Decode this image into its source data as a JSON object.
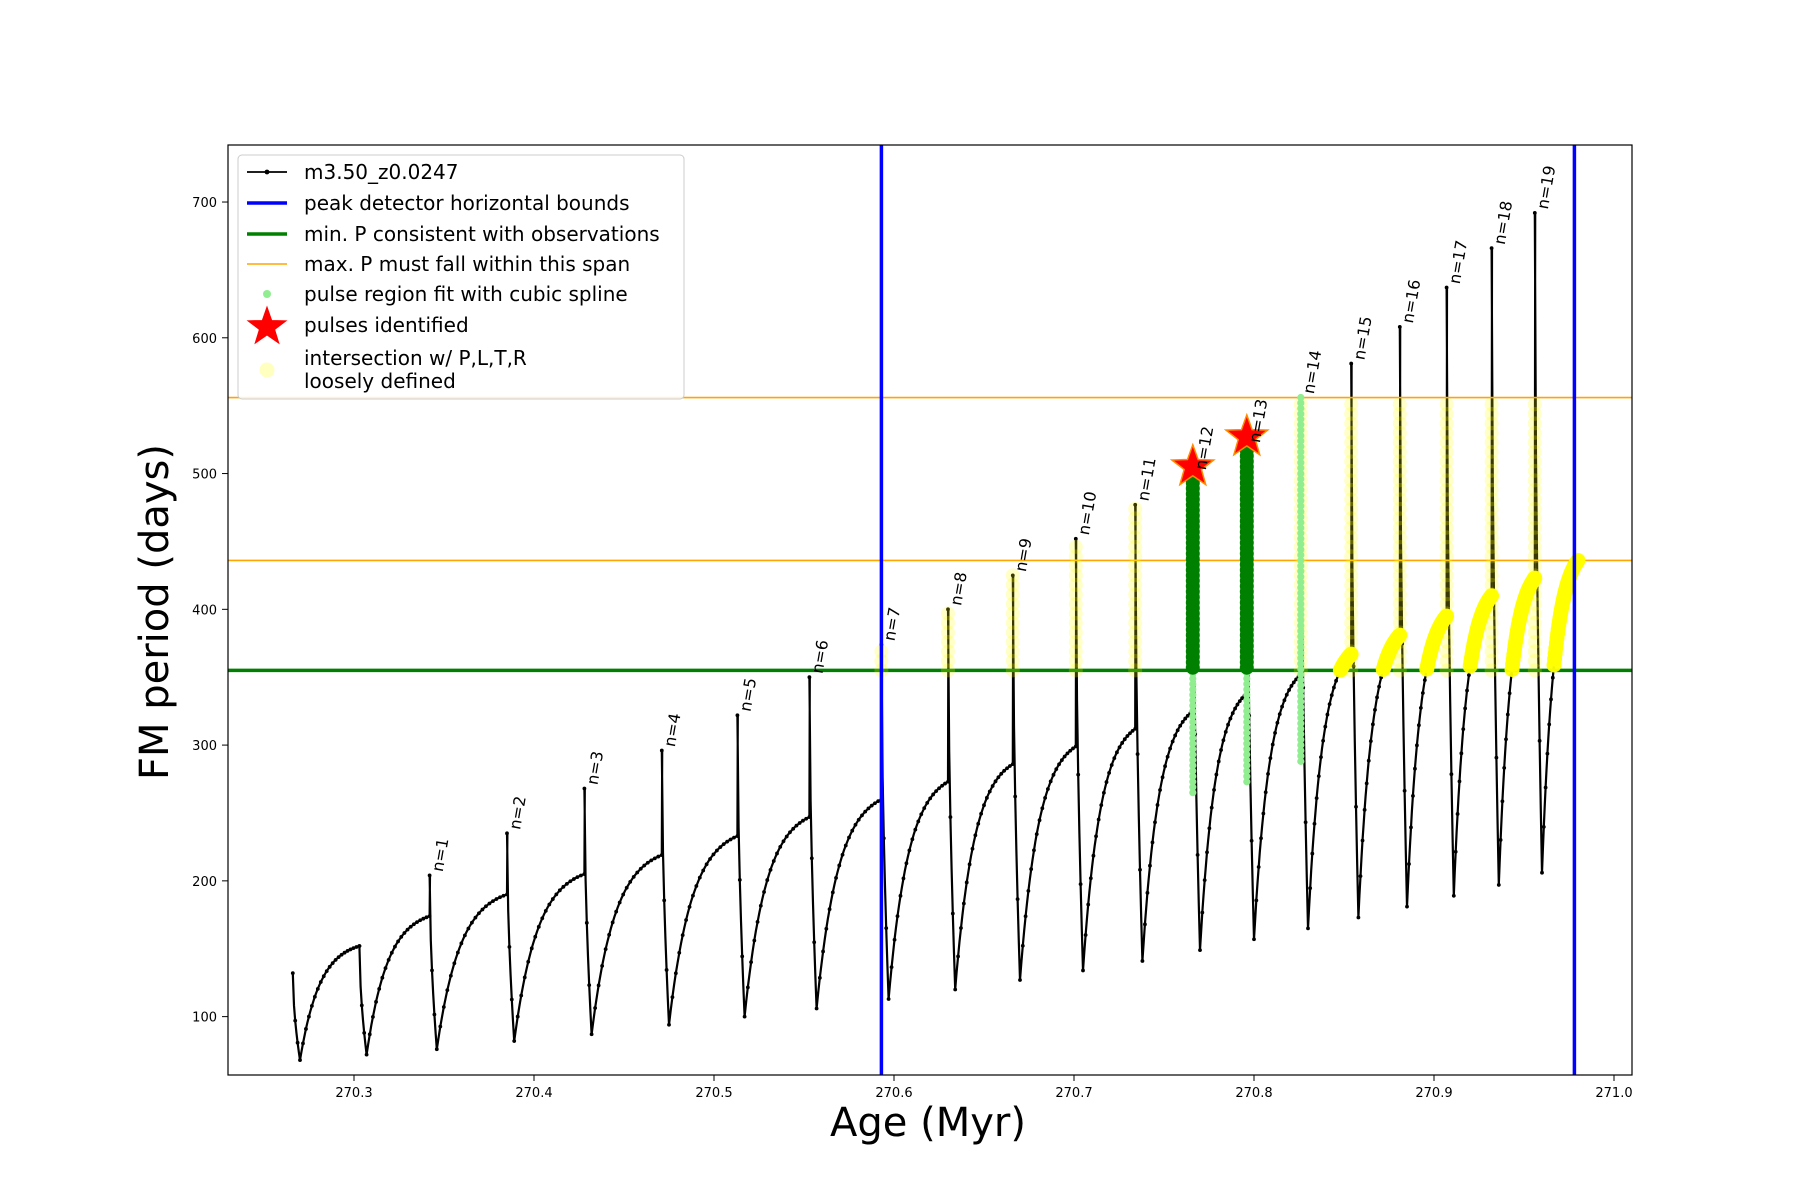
{
  "chart_data": {
    "type": "line",
    "xlabel": "Age (Myr)",
    "ylabel": "FM period (days)",
    "xlim": [
      270.23,
      271.01
    ],
    "ylim": [
      57,
      742
    ],
    "xticks": [
      270.3,
      270.4,
      270.5,
      270.6,
      270.7,
      270.8,
      270.9,
      271.0
    ],
    "xtick_labels": [
      "270.3",
      "270.4",
      "270.5",
      "270.6",
      "270.7",
      "270.8",
      "270.9",
      "271.0"
    ],
    "yticks": [
      100,
      200,
      300,
      400,
      500,
      600,
      700
    ],
    "ytick_labels": [
      "100",
      "200",
      "300",
      "400",
      "500",
      "600",
      "700"
    ],
    "grid": false,
    "legend_position": "top-left",
    "colors": {
      "track": "#000000",
      "bounds": "#0000ff",
      "min_p": "#008000",
      "max_p": "#ffa500",
      "spline": "#90ee90",
      "pulse": "#ff0000",
      "pulse_edge": "#ff8c00",
      "loose": "#ffff00"
    },
    "legend": [
      {
        "key": "line-marker",
        "label": "m3.50_z0.0247"
      },
      {
        "key": "blue-line",
        "label": "peak detector horizontal bounds"
      },
      {
        "key": "green-line",
        "label": "min. P consistent with observations"
      },
      {
        "key": "orange-line",
        "label": "max. P must fall within this span"
      },
      {
        "key": "green-dot",
        "label": "pulse region fit with cubic spline"
      },
      {
        "key": "red-star",
        "label": "pulses identified"
      },
      {
        "key": "yellow-circle",
        "label": "intersection w/ P,L,T,R",
        "label2": "loosely defined"
      }
    ],
    "vertical_lines": [
      270.593,
      270.978
    ],
    "min_p": 355,
    "max_p_span": [
      436,
      556
    ],
    "cycles": [
      {
        "start": 270.266,
        "min": 68,
        "end": 270.303,
        "pre": 152,
        "peak": 152,
        "label": ""
      },
      {
        "start": 270.303,
        "min": 72,
        "end": 270.342,
        "pre": 174,
        "peak": 204,
        "label": "n=1"
      },
      {
        "start": 270.342,
        "min": 76,
        "end": 270.385,
        "pre": 190,
        "peak": 235,
        "label": "n=2"
      },
      {
        "start": 270.385,
        "min": 82,
        "end": 270.428,
        "pre": 205,
        "peak": 268,
        "label": "n=3"
      },
      {
        "start": 270.428,
        "min": 87,
        "end": 270.471,
        "pre": 219,
        "peak": 296,
        "label": "n=4"
      },
      {
        "start": 270.471,
        "min": 94,
        "end": 270.513,
        "pre": 233,
        "peak": 322,
        "label": "n=5"
      },
      {
        "start": 270.513,
        "min": 100,
        "end": 270.553,
        "pre": 247,
        "peak": 350,
        "label": "n=6"
      },
      {
        "start": 270.553,
        "min": 106,
        "end": 270.593,
        "pre": 260,
        "peak": 374,
        "label": "n=7"
      },
      {
        "start": 270.593,
        "min": 113,
        "end": 270.63,
        "pre": 273,
        "peak": 400,
        "label": "n=8"
      },
      {
        "start": 270.63,
        "min": 120,
        "end": 270.666,
        "pre": 286,
        "peak": 425,
        "label": "n=9"
      },
      {
        "start": 270.666,
        "min": 127,
        "end": 270.701,
        "pre": 299,
        "peak": 452,
        "label": "n=10"
      },
      {
        "start": 270.701,
        "min": 134,
        "end": 270.734,
        "pre": 312,
        "peak": 477,
        "label": "n=11"
      },
      {
        "start": 270.734,
        "min": 141,
        "end": 270.766,
        "pre": 325,
        "peak": 500,
        "label": "n=12"
      },
      {
        "start": 270.766,
        "min": 149,
        "end": 270.796,
        "pre": 338,
        "peak": 520,
        "label": "n=13"
      },
      {
        "start": 270.796,
        "min": 157,
        "end": 270.826,
        "pre": 352,
        "peak": 556,
        "label": "n=14"
      },
      {
        "start": 270.826,
        "min": 165,
        "end": 270.854,
        "pre": 367,
        "peak": 581,
        "label": "n=15"
      },
      {
        "start": 270.854,
        "min": 173,
        "end": 270.881,
        "pre": 381,
        "peak": 608,
        "label": "n=16"
      },
      {
        "start": 270.881,
        "min": 181,
        "end": 270.907,
        "pre": 395,
        "peak": 637,
        "label": "n=17"
      },
      {
        "start": 270.907,
        "min": 189,
        "end": 270.932,
        "pre": 410,
        "peak": 666,
        "label": "n=18"
      },
      {
        "start": 270.932,
        "min": 197,
        "end": 270.956,
        "pre": 423,
        "peak": 692,
        "label": "n=19"
      },
      {
        "start": 270.956,
        "min": 206,
        "end": 270.98,
        "pre": 436,
        "peak": null,
        "label": ""
      }
    ],
    "spline_pulses": [
      270.766,
      270.796,
      270.826
    ],
    "identified_pulses": [
      {
        "x": 270.766,
        "y": 505
      },
      {
        "x": 270.796,
        "y": 527
      }
    ]
  }
}
